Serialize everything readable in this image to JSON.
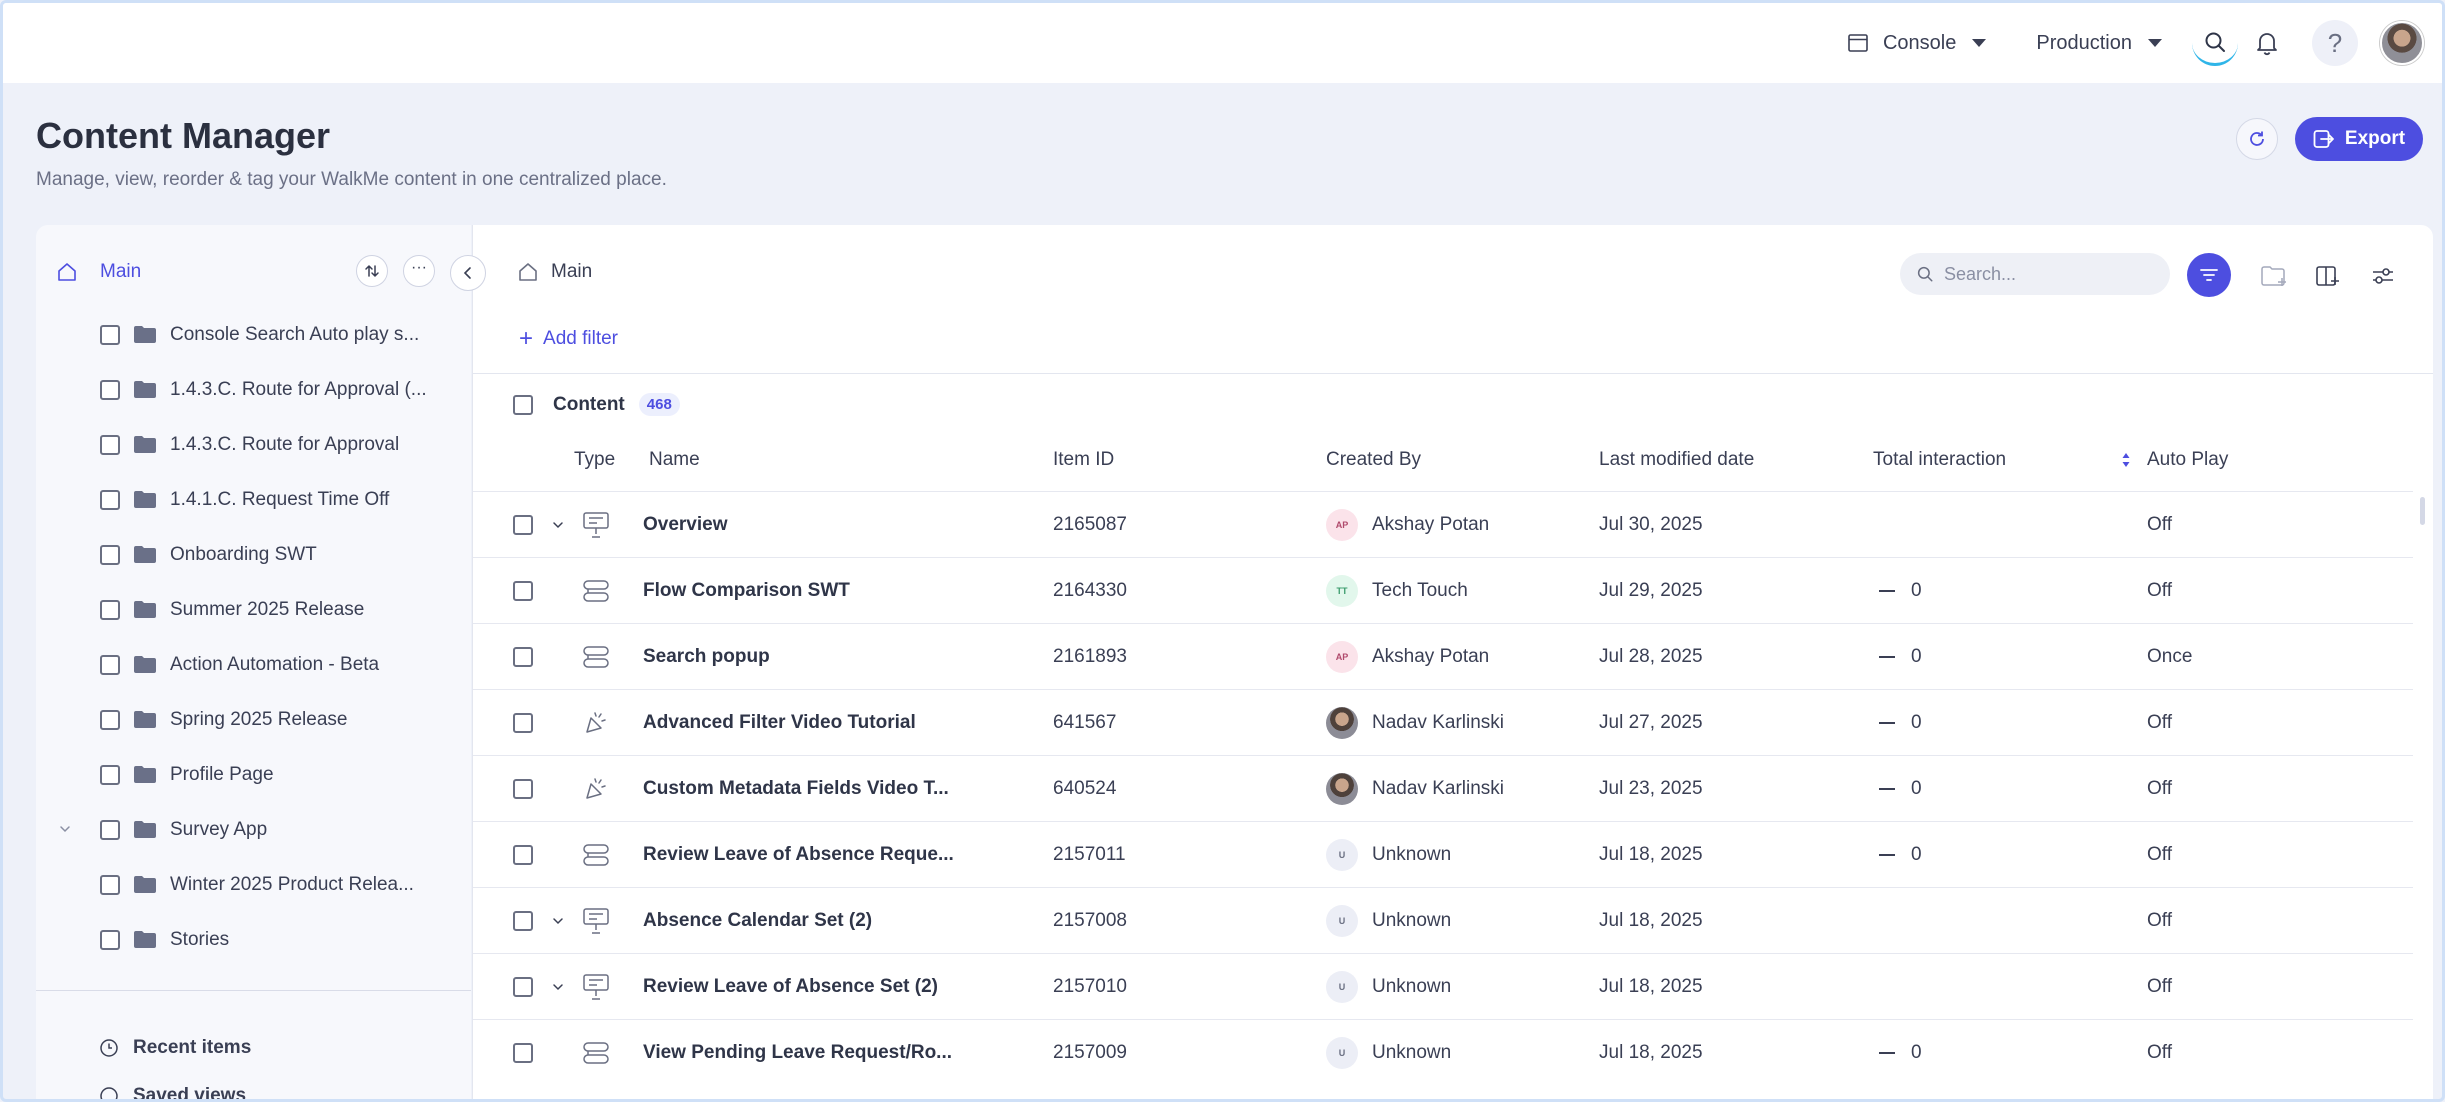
{
  "topbar": {
    "console_label": "Console",
    "env_label": "Production"
  },
  "header": {
    "title": "Content Manager",
    "subtitle": "Manage, view, reorder & tag your WalkMe content in one centralized place.",
    "export_label": "Export"
  },
  "sidebar": {
    "root_label": "Main",
    "folders": [
      "Console Search Auto play s...",
      "1.4.3.C. Route for Approval (...",
      "1.4.3.C. Route for Approval",
      "1.4.1.C. Request Time Off",
      "Onboarding SWT",
      "Summer 2025 Release",
      "Action Automation - Beta",
      "Spring 2025 Release",
      "Profile Page",
      "Survey App",
      "Winter 2025 Product Relea...",
      "Stories"
    ],
    "recent_label": "Recent items",
    "saved_label": "Saved views"
  },
  "main": {
    "breadcrumb": "Main",
    "search_placeholder": "Search...",
    "add_filter_label": "Add filter",
    "content_label": "Content",
    "content_count": "468",
    "columns": {
      "type": "Type",
      "name": "Name",
      "item_id": "Item ID",
      "created_by": "Created By",
      "modified": "Last modified date",
      "interaction": "Total interaction",
      "autoplay": "Auto Play"
    },
    "rows": [
      {
        "name": "Overview",
        "id": "2165087",
        "initials": "AP",
        "creator": "Akshay Potan",
        "date": "Jul 30, 2025",
        "interaction": "",
        "autoplay": "Off",
        "type_icon": "smart-walkthru-set-icon"
      },
      {
        "name": "Flow Comparison SWT",
        "id": "2164330",
        "initials": "TT",
        "creator": "Tech Touch",
        "date": "Jul 29, 2025",
        "interaction": "0",
        "autoplay": "Off",
        "type_icon": "smart-walkthru-icon"
      },
      {
        "name": "Search popup",
        "id": "2161893",
        "initials": "AP",
        "creator": "Akshay Potan",
        "date": "Jul 28, 2025",
        "interaction": "0",
        "autoplay": "Once",
        "type_icon": "smart-walkthru-icon"
      },
      {
        "name": "Advanced Filter Video Tutorial",
        "id": "641567",
        "initials": "",
        "creator": "Nadav Karlinski",
        "date": "Jul 27, 2025",
        "interaction": "0",
        "autoplay": "Off",
        "type_icon": "launcher-icon"
      },
      {
        "name": "Custom Metadata Fields Video T...",
        "id": "640524",
        "initials": "",
        "creator": "Nadav Karlinski",
        "date": "Jul 23, 2025",
        "interaction": "0",
        "autoplay": "Off",
        "type_icon": "launcher-icon"
      },
      {
        "name": "Review Leave of Absence Reque...",
        "id": "2157011",
        "initials": "U",
        "creator": "Unknown",
        "date": "Jul 18, 2025",
        "interaction": "0",
        "autoplay": "Off",
        "type_icon": "smart-walkthru-icon"
      },
      {
        "name": "Absence Calendar Set (2)",
        "id": "2157008",
        "initials": "U",
        "creator": "Unknown",
        "date": "Jul 18, 2025",
        "interaction": "",
        "autoplay": "Off",
        "type_icon": "smart-walkthru-set-icon"
      },
      {
        "name": "Review Leave of Absence Set (2)",
        "id": "2157010",
        "initials": "U",
        "creator": "Unknown",
        "date": "Jul 18, 2025",
        "interaction": "",
        "autoplay": "Off",
        "type_icon": "smart-walkthru-set-icon"
      },
      {
        "name": "View Pending Leave Request/Ro...",
        "id": "2157009",
        "initials": "U",
        "creator": "Unknown",
        "date": "Jul 18, 2025",
        "interaction": "0",
        "autoplay": "Off",
        "type_icon": "smart-walkthru-icon"
      }
    ]
  }
}
